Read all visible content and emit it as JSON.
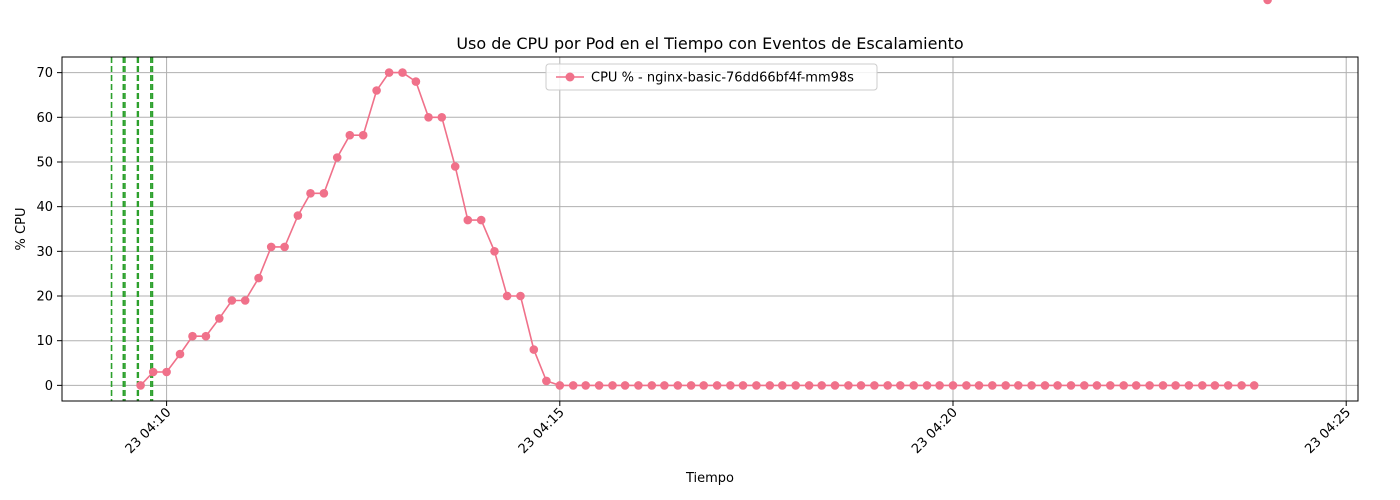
{
  "chart_data": {
    "type": "line",
    "title": "Uso de CPU por Pod en el Tiempo con Eventos de Escalamiento",
    "xlabel": "Tiempo",
    "ylabel": "% CPU",
    "x_ticks": [
      "23 04:10",
      "23 04:15",
      "23 04:20",
      "23 04:25"
    ],
    "x_tick_minutes": [
      10,
      15,
      20,
      25
    ],
    "xlim_minutes": [
      8.67,
      25.15
    ],
    "y_ticks": [
      0,
      10,
      20,
      30,
      40,
      50,
      60,
      70
    ],
    "ylim": [
      -3.5,
      73.5
    ],
    "grid": true,
    "legend_position": "top-center",
    "colors": {
      "series": "#f0718a",
      "scaling_event": "#2ca02c",
      "grid": "#b0b0b0",
      "axis": "#000000"
    },
    "series": [
      {
        "name": "CPU % - nginx-basic-76dd66bf4f-mm98s",
        "time_minutes": [
          9.67,
          9.83,
          10.0,
          10.17,
          10.33,
          10.5,
          10.67,
          10.83,
          11.0,
          11.17,
          11.33,
          11.5,
          11.67,
          11.83,
          12.0,
          12.17,
          12.33,
          12.5,
          12.67,
          12.83,
          13.0,
          13.17,
          13.33,
          13.5,
          13.67,
          13.83,
          14.0,
          14.17,
          14.33,
          14.5,
          14.67,
          14.83,
          15.0,
          15.17,
          15.33,
          15.5,
          15.67,
          15.83,
          16.0,
          16.17,
          16.33,
          16.5,
          16.67,
          16.83,
          17.0,
          17.17,
          17.33,
          17.5,
          17.67,
          17.83,
          18.0,
          18.17,
          18.33,
          18.5,
          18.67,
          18.83,
          19.0,
          19.17,
          19.33,
          19.5,
          19.67,
          19.83,
          20.0,
          20.17,
          20.33,
          20.5,
          20.67,
          20.83,
          21.0,
          21.17,
          21.33,
          21.5,
          21.67,
          21.83,
          22.0,
          22.17,
          22.33,
          22.5,
          22.67,
          22.83,
          23.0,
          23.17,
          23.33,
          23.5,
          23.67,
          23.83,
          24.0
        ],
        "values": [
          0,
          3,
          3,
          7,
          11,
          11,
          15,
          19,
          19,
          24,
          31,
          31,
          38,
          43,
          43,
          51,
          56,
          56,
          66,
          70,
          70,
          68,
          60,
          60,
          49,
          37,
          37,
          30,
          20,
          20,
          8,
          1,
          0,
          0,
          0,
          0,
          0,
          0,
          0,
          0,
          0,
          0,
          0,
          0,
          0,
          0,
          0,
          0,
          0,
          0,
          0,
          0,
          0,
          0,
          0,
          0,
          0,
          0,
          0,
          0,
          0,
          0,
          0,
          0,
          0,
          0,
          0,
          0,
          0,
          0,
          0,
          0,
          0,
          0,
          0,
          0,
          0,
          0,
          0,
          0,
          0,
          0,
          0,
          0,
          0,
          0
        ]
      }
    ],
    "scaling_events_minutes": [
      9.3,
      9.45,
      9.47,
      9.63,
      9.64,
      9.8,
      9.82
    ]
  }
}
